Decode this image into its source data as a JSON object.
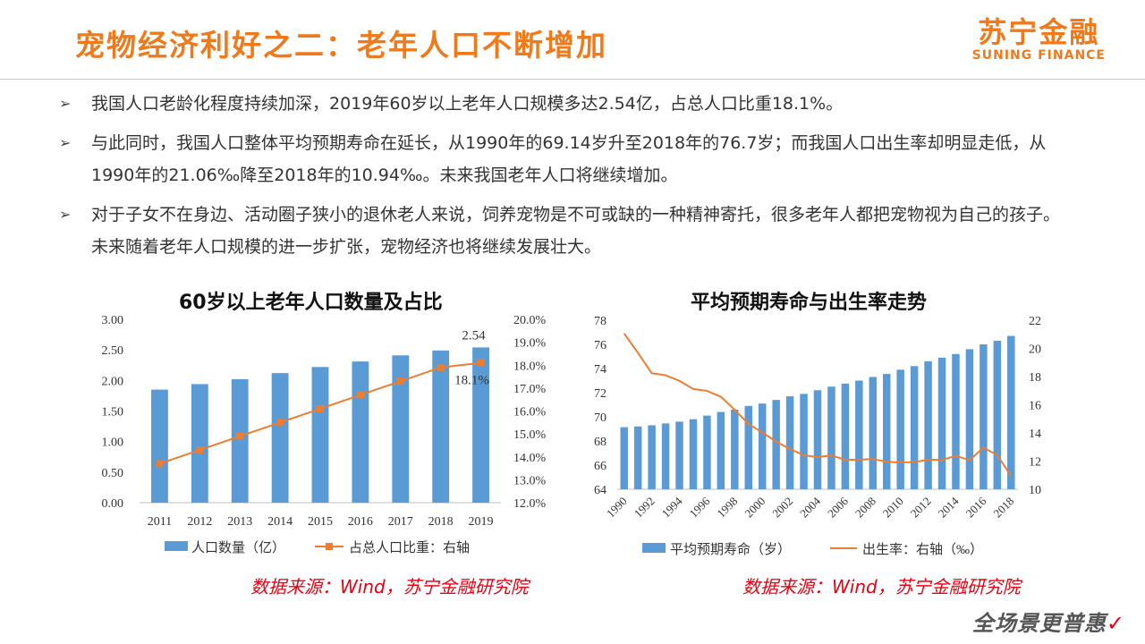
{
  "header": {
    "title": "宠物经济利好之二：老年人口不断增加",
    "logo_cn": "苏宁金融",
    "logo_en": "SUNING FINANCE"
  },
  "bullets": [
    "我国人口老龄化程度持续加深，2019年60岁以上老年人口规模多达2.54亿，占总人口比重18.1%。",
    "与此同时，我国人口整体平均预期寿命在延长，从1990年的69.14岁升至2018年的76.7岁；而我国人口出生率却明显走低，从1990年的21.06‰降至2018年的10.94‰。未来我国老年人口将继续增加。",
    "对于子女不在身边、活动圈子狭小的退休老人来说，饲养宠物是不可或缺的一种精神寄托，很多老年人都把宠物视为自己的孩子。未来随着老年人口规模的进一步扩张，宠物经济也将继续发展壮大。"
  ],
  "chart_data": [
    {
      "type": "bar",
      "title": "60岁以上老年人口数量及占比",
      "categories": [
        "2011",
        "2012",
        "2013",
        "2014",
        "2015",
        "2016",
        "2017",
        "2018",
        "2019"
      ],
      "series": [
        {
          "name": "人口数量（亿）",
          "type": "bar",
          "axis": "left",
          "values": [
            1.85,
            1.94,
            2.02,
            2.12,
            2.22,
            2.31,
            2.41,
            2.49,
            2.54
          ]
        },
        {
          "name": "占总人口比重：右轴",
          "type": "line",
          "axis": "right",
          "values": [
            13.7,
            14.3,
            14.9,
            15.5,
            16.1,
            16.7,
            17.3,
            17.9,
            18.1
          ]
        }
      ],
      "ylim": [
        0,
        3
      ],
      "yticks": [
        "0.00",
        "0.50",
        "1.00",
        "1.50",
        "2.00",
        "2.50",
        "3.00"
      ],
      "y2lim": [
        12,
        20
      ],
      "y2ticks": [
        "12.0%",
        "13.0%",
        "14.0%",
        "15.0%",
        "16.0%",
        "17.0%",
        "18.0%",
        "19.0%",
        "20.0%"
      ],
      "annotations": [
        "2.54",
        "18.1%"
      ]
    },
    {
      "type": "bar",
      "title": "平均预期寿命与出生率走势",
      "categories": [
        "1990",
        "1991",
        "1992",
        "1993",
        "1994",
        "1995",
        "1996",
        "1997",
        "1998",
        "1999",
        "2000",
        "2001",
        "2002",
        "2003",
        "2004",
        "2005",
        "2006",
        "2007",
        "2008",
        "2009",
        "2010",
        "2011",
        "2012",
        "2013",
        "2014",
        "2015",
        "2016",
        "2017",
        "2018"
      ],
      "xticks": [
        "1990",
        "1992",
        "1994",
        "1996",
        "1998",
        "2000",
        "2002",
        "2004",
        "2006",
        "2008",
        "2010",
        "2012",
        "2014",
        "2016",
        "2018"
      ],
      "series": [
        {
          "name": "平均预期寿命（岁）",
          "type": "bar",
          "axis": "left",
          "values": [
            69.14,
            69.2,
            69.3,
            69.45,
            69.6,
            69.8,
            70.1,
            70.4,
            70.6,
            70.9,
            71.1,
            71.4,
            71.7,
            71.9,
            72.2,
            72.5,
            72.75,
            73.0,
            73.3,
            73.55,
            73.9,
            74.2,
            74.6,
            74.9,
            75.2,
            75.6,
            76.0,
            76.3,
            76.7
          ]
        },
        {
          "name": "出生率：右轴（‰）",
          "type": "line",
          "axis": "right",
          "values": [
            21.06,
            19.68,
            18.24,
            18.09,
            17.7,
            17.12,
            16.98,
            16.57,
            15.64,
            14.64,
            14.03,
            13.38,
            12.86,
            12.41,
            12.29,
            12.4,
            12.09,
            12.1,
            12.14,
            11.95,
            11.9,
            11.93,
            12.1,
            12.08,
            12.37,
            12.07,
            12.95,
            12.43,
            10.94
          ]
        }
      ],
      "ylim": [
        64,
        78
      ],
      "yticks": [
        "64",
        "66",
        "68",
        "70",
        "72",
        "74",
        "76",
        "78"
      ],
      "y2lim": [
        10,
        22
      ],
      "y2ticks": [
        "10",
        "12",
        "14",
        "16",
        "18",
        "20",
        "22"
      ]
    }
  ],
  "legend1": {
    "bar": "人口数量（亿）",
    "line": "占总人口比重：右轴"
  },
  "legend2": {
    "bar": "平均预期寿命（岁）",
    "line": "出生率：右轴（‰）"
  },
  "source1": "数据来源：Wind，苏宁金融研究院",
  "source2": "数据来源：Wind，苏宁金融研究院",
  "slogan": "全场景更普惠",
  "colors": {
    "accent": "#ee7a1c",
    "bar": "#5b9bd5",
    "line": "#ed7d31",
    "source": "#e60012"
  }
}
